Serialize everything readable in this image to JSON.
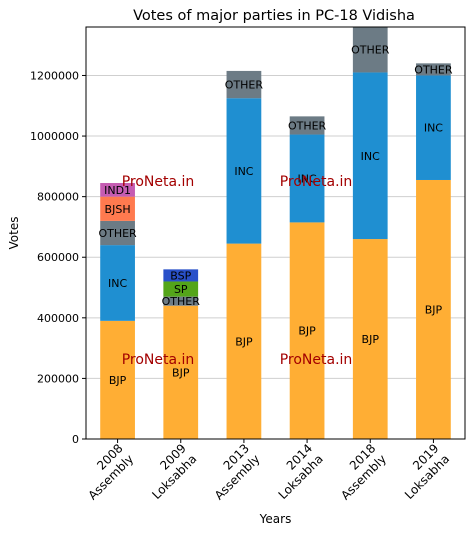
{
  "chart_data": {
    "type": "bar",
    "stacked": true,
    "title": "Votes of major parties in PC-18 Vidisha",
    "xlabel": "Years",
    "ylabel": "Votes",
    "ylim": [
      0,
      1360000
    ],
    "yticks": [
      0,
      200000,
      400000,
      600000,
      800000,
      1000000,
      1200000
    ],
    "ytick_labels": [
      "0",
      "200000",
      "400000",
      "600000",
      "800000",
      "1000000",
      "1200000"
    ],
    "grid": true,
    "categories": [
      [
        "2008",
        "Assembly"
      ],
      [
        "2009",
        "Loksabha"
      ],
      [
        "2013",
        "Assembly"
      ],
      [
        "2014",
        "Loksabha"
      ],
      [
        "2018",
        "Assembly"
      ],
      [
        "2019",
        "Loksabha"
      ]
    ],
    "bars": [
      [
        {
          "label": "BJP",
          "value": 390000,
          "color": "#ffae34"
        },
        {
          "label": "INC",
          "value": 250000,
          "color": "#1f8fd1"
        },
        {
          "label": "OTHER",
          "value": 80000,
          "color": "#6c7b85"
        },
        {
          "label": "BJSH",
          "value": 80000,
          "color": "#ff7a4f"
        },
        {
          "label": "IND1",
          "value": 45000,
          "color": "#c55cb2"
        }
      ],
      [
        {
          "label": "BJP",
          "value": 440000,
          "color": "#ffae34"
        },
        {
          "label": "OTHER",
          "value": 30000,
          "color": "#6c7b85"
        },
        {
          "label": "SP",
          "value": 50000,
          "color": "#54a51a"
        },
        {
          "label": "BSP",
          "value": 40000,
          "color": "#2950c9"
        }
      ],
      [
        {
          "label": "BJP",
          "value": 645000,
          "color": "#ffae34"
        },
        {
          "label": "INC",
          "value": 480000,
          "color": "#1f8fd1"
        },
        {
          "label": "OTHER",
          "value": 90000,
          "color": "#6c7b85"
        }
      ],
      [
        {
          "label": "BJP",
          "value": 715000,
          "color": "#ffae34"
        },
        {
          "label": "INC",
          "value": 290000,
          "color": "#1f8fd1"
        },
        {
          "label": "OTHER",
          "value": 60000,
          "color": "#6c7b85"
        }
      ],
      [
        {
          "label": "BJP",
          "value": 660000,
          "color": "#ffae34"
        },
        {
          "label": "INC",
          "value": 550000,
          "color": "#1f8fd1"
        },
        {
          "label": "OTHER",
          "value": 150000,
          "color": "#6c7b85"
        }
      ],
      [
        {
          "label": "BJP",
          "value": 855000,
          "color": "#ffae34"
        },
        {
          "label": "INC",
          "value": 345000,
          "color": "#1f8fd1"
        },
        {
          "label": "OTHER",
          "value": 40000,
          "color": "#6c7b85"
        }
      ]
    ],
    "watermark": "ProNeta.in"
  }
}
